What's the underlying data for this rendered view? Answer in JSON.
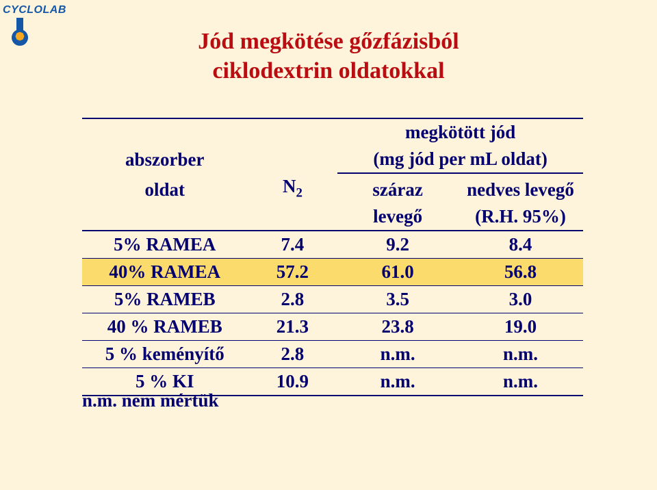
{
  "logo": {
    "text": "CYCLOLAB"
  },
  "title": {
    "line1": "Jód megkötése gőzfázisból",
    "line2": "ciklodextrin oldatokkal"
  },
  "colors": {
    "page_bg": "#fdf4db",
    "title": "#b90d11",
    "body_text": "#04006f",
    "rule": "#04006f",
    "highlight_bg": "#fadb6c",
    "logo_text": "#1557a7",
    "logo_outer": "#1557a7",
    "logo_inner": "#f5a81f"
  },
  "table": {
    "header": {
      "absorber_line1": "abszorber",
      "absorber_line2": "oldat",
      "bound_line1": "megkötött jód",
      "bound_line2": "(mg jód per mL oldat)",
      "n2": "N",
      "n2_sub": "2",
      "dry_line1": "száraz",
      "dry_line2": "levegő",
      "wet_line1": "nedves levegő",
      "wet_line2": "(R.H. 95%)"
    },
    "rows": [
      {
        "label": "5% RAMEA",
        "n2": "7.4",
        "dry": "9.2",
        "wet": "8.4",
        "highlight": false
      },
      {
        "label": "40% RAMEA",
        "n2": "57.2",
        "dry": "61.0",
        "wet": "56.8",
        "highlight": true
      },
      {
        "label": "5% RAMEB",
        "n2": "2.8",
        "dry": "3.5",
        "wet": "3.0",
        "highlight": false
      },
      {
        "label": "40 % RAMEB",
        "n2": "21.3",
        "dry": "23.8",
        "wet": "19.0",
        "highlight": false
      },
      {
        "label": "5 % keményítő",
        "n2": "2.8",
        "dry": "n.m.",
        "wet": "n.m.",
        "highlight": false
      },
      {
        "label": "5 % KI",
        "n2": "10.9",
        "dry": "n.m.",
        "wet": "n.m.",
        "highlight": false
      }
    ]
  },
  "footnote": "n.m. nem mértük"
}
